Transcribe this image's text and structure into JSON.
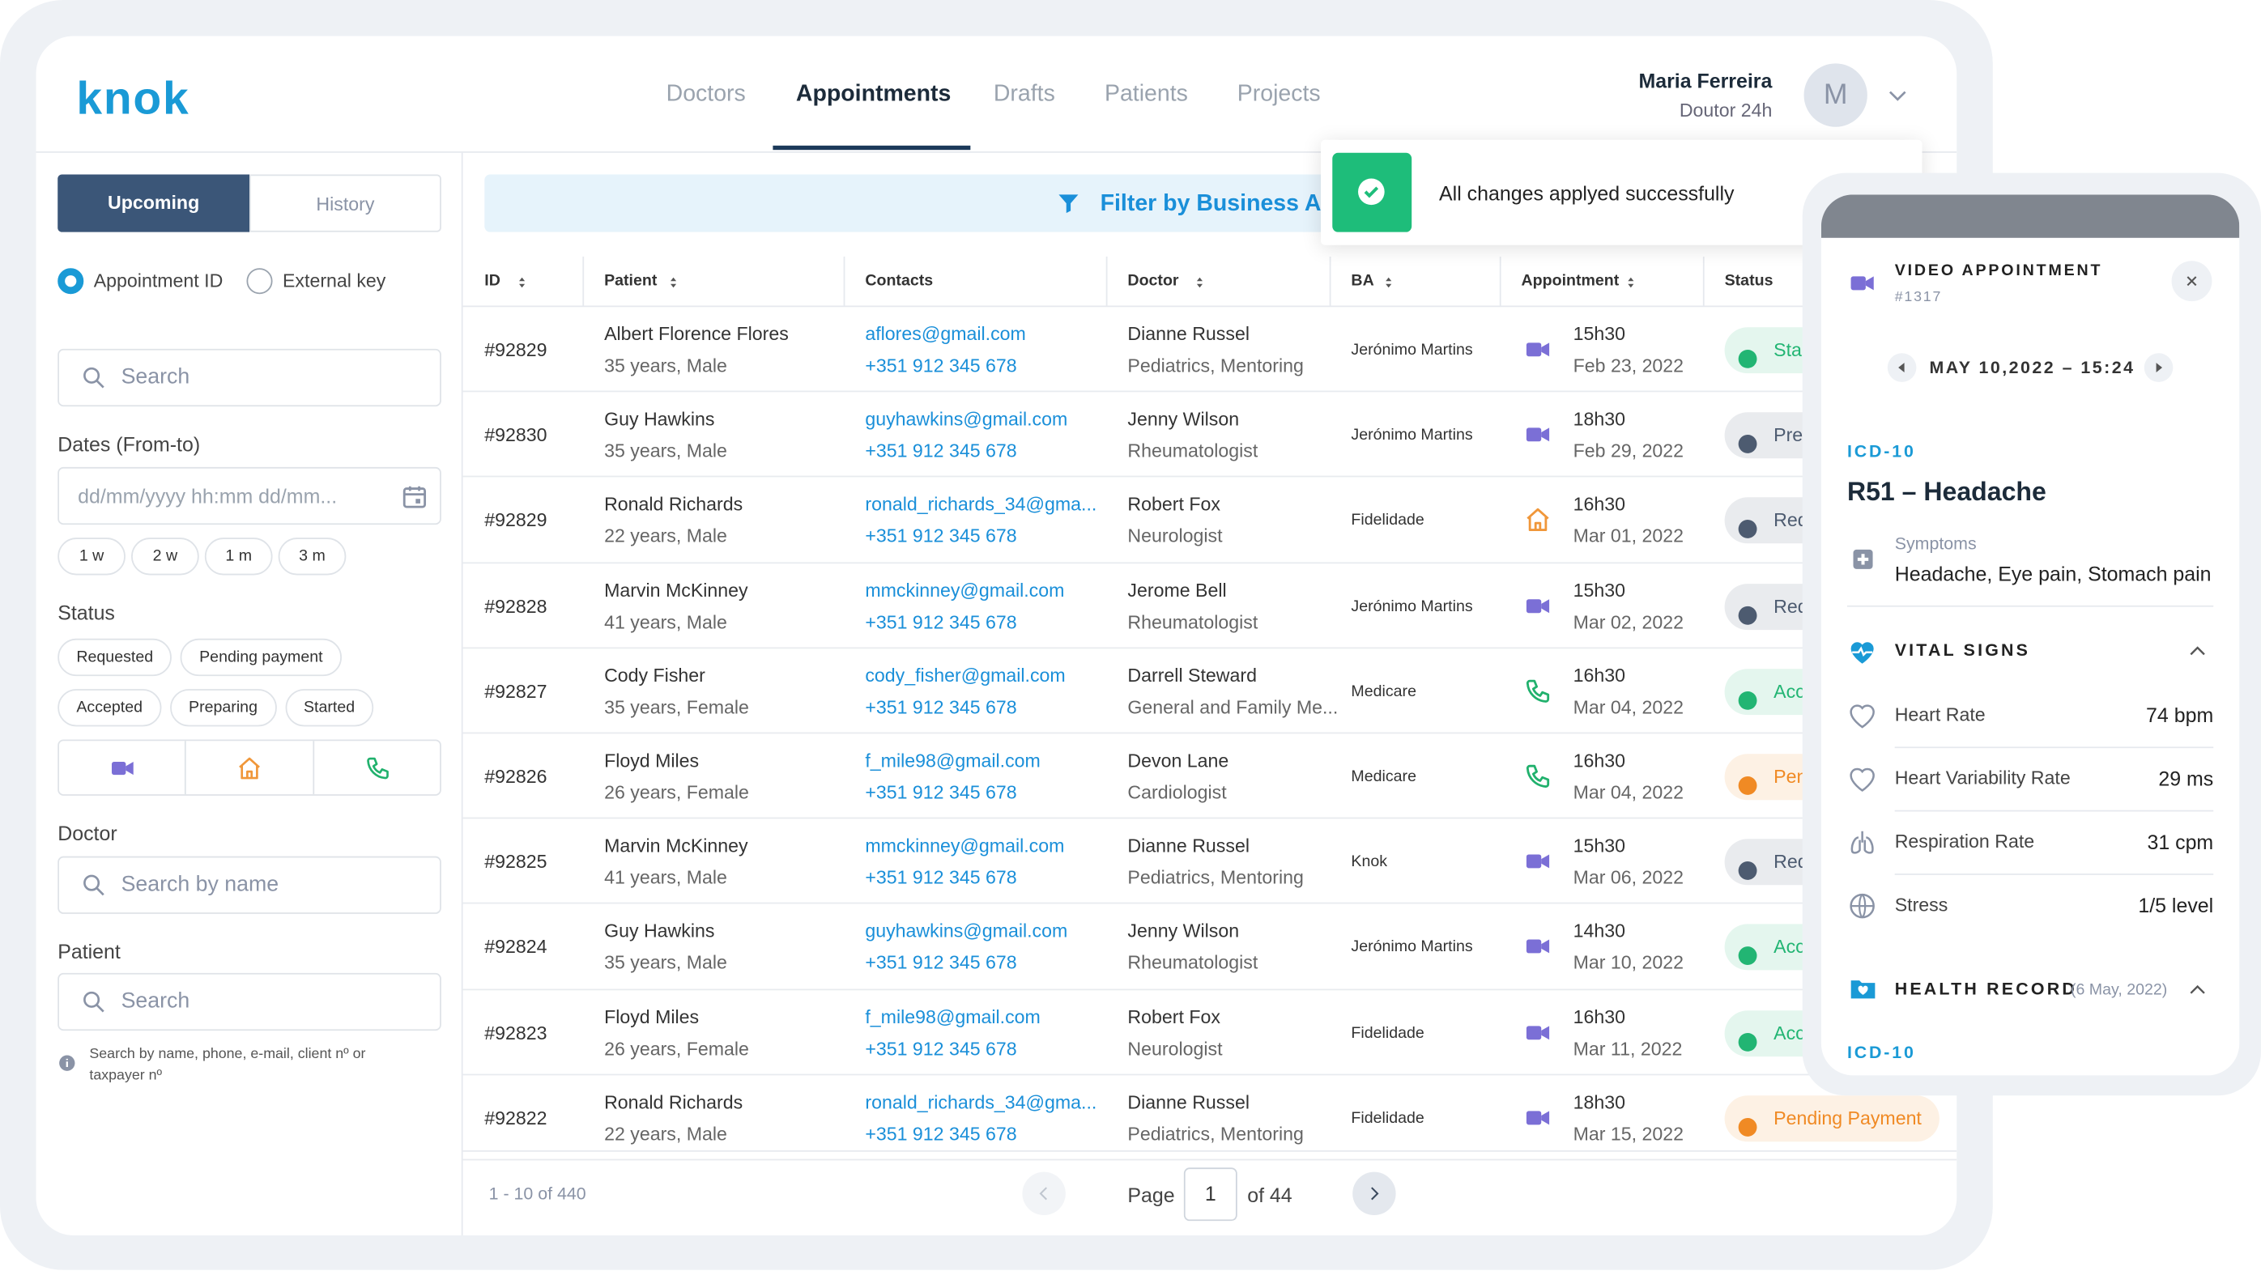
{
  "header": {
    "logo": "knok",
    "nav": [
      "Doctors",
      "Appointments",
      "Drafts",
      "Patients",
      "Projects"
    ],
    "active_nav": 1,
    "user_name": "Maria Ferreira",
    "user_role": "Doutor 24h",
    "avatar": "M"
  },
  "sidebar": {
    "tabs": [
      "Upcoming",
      "History"
    ],
    "search_modes": [
      "Appointment ID",
      "External key"
    ],
    "search_placeholder": "Search",
    "dates_label": "Dates (From-to)",
    "dates_placeholder": "dd/mm/yyyy hh:mm dd/mm...",
    "ranges": [
      "1 w",
      "2 w",
      "1 m",
      "3 m"
    ],
    "status_label": "Status",
    "statuses": [
      "Requested",
      "Pending payment",
      "Accepted",
      "Preparing",
      "Started"
    ],
    "doctor_label": "Doctor",
    "doctor_placeholder": "Search by name",
    "patient_label": "Patient",
    "patient_placeholder": "Search",
    "help": "Search by name, phone, e-mail, client nº or taxpayer nº"
  },
  "filter": "Filter by Business Account",
  "toast": "All changes applyed successfully",
  "table": {
    "columns": [
      "ID",
      "Patient",
      "Contacts",
      "Doctor",
      "BA",
      "Appointment",
      "Status"
    ],
    "rows": [
      {
        "id": "#92829",
        "patient": "Albert Florence Flores",
        "patient_info": "35 years, Male",
        "email": "aflores@gmail.com",
        "phone": "+351 912 345 678",
        "doctor": "Dianne Russel",
        "specialty": "Pediatrics, Mentoring",
        "ba": "Jerónimo Martins",
        "mode": "video",
        "time": "15h30",
        "date": "Feb 23, 2022",
        "status": "Started",
        "status_color": "#22b573"
      },
      {
        "id": "#92830",
        "patient": "Guy Hawkins",
        "patient_info": "35 years, Male",
        "email": "guyhawkins@gmail.com",
        "phone": "+351 912 345 678",
        "doctor": "Jenny Wilson",
        "specialty": "Rheumatologist",
        "ba": "Jerónimo Martins",
        "mode": "video",
        "time": "18h30",
        "date": "Feb 29, 2022",
        "status": "Preparing",
        "status_color": "#4d5b70"
      },
      {
        "id": "#92829",
        "patient": "Ronald Richards",
        "patient_info": "22 years, Male",
        "email": "ronald_richards_34@gma...",
        "phone": "+351 912 345 678",
        "doctor": "Robert Fox",
        "specialty": "Neurologist",
        "ba": "Fidelidade",
        "mode": "home",
        "time": "16h30",
        "date": "Mar 01, 2022",
        "status": "Requested",
        "status_color": "#4d5b70"
      },
      {
        "id": "#92828",
        "patient": "Marvin McKinney",
        "patient_info": "41 years, Male",
        "email": "mmckinney@gmail.com",
        "phone": "+351 912 345 678",
        "doctor": "Jerome Bell",
        "specialty": "Rheumatologist",
        "ba": "Jerónimo Martins",
        "mode": "video",
        "time": "15h30",
        "date": "Mar 02, 2022",
        "status": "Requested",
        "status_color": "#4d5b70"
      },
      {
        "id": "#92827",
        "patient": "Cody Fisher",
        "patient_info": "35 years, Female",
        "email": "cody_fisher@gmail.com",
        "phone": "+351 912 345 678",
        "doctor": "Darrell Steward",
        "specialty": "General and Family Me...",
        "ba": "Medicare",
        "mode": "phone",
        "time": "16h30",
        "date": "Mar 04, 2022",
        "status": "Accepted",
        "status_color": "#22b573"
      },
      {
        "id": "#92826",
        "patient": "Floyd Miles",
        "patient_info": "26 years, Female",
        "email": "f_mile98@gmail.com",
        "phone": "+351 912 345 678",
        "doctor": "Devon Lane",
        "specialty": "Cardiologist",
        "ba": "Medicare",
        "mode": "phone",
        "time": "16h30",
        "date": "Mar 04, 2022",
        "status": "Pending Payment",
        "status_color": "#f08a24"
      },
      {
        "id": "#92825",
        "patient": "Marvin McKinney",
        "patient_info": "41 years, Male",
        "email": "mmckinney@gmail.com",
        "phone": "+351 912 345 678",
        "doctor": "Dianne Russel",
        "specialty": "Pediatrics, Mentoring",
        "ba": "Knok",
        "mode": "video",
        "time": "15h30",
        "date": "Mar 06, 2022",
        "status": "Requested",
        "status_color": "#4d5b70"
      },
      {
        "id": "#92824",
        "patient": "Guy Hawkins",
        "patient_info": "35 years, Male",
        "email": "guyhawkins@gmail.com",
        "phone": "+351 912 345 678",
        "doctor": "Jenny Wilson",
        "specialty": "Rheumatologist",
        "ba": "Jerónimo Martins",
        "mode": "video",
        "time": "14h30",
        "date": "Mar 10, 2022",
        "status": "Accepted",
        "status_color": "#22b573"
      },
      {
        "id": "#92823",
        "patient": "Floyd Miles",
        "patient_info": "26 years, Female",
        "email": "f_mile98@gmail.com",
        "phone": "+351 912 345 678",
        "doctor": "Robert Fox",
        "specialty": "Neurologist",
        "ba": "Fidelidade",
        "mode": "video",
        "time": "16h30",
        "date": "Mar 11, 2022",
        "status": "Accepted",
        "status_color": "#22b573"
      },
      {
        "id": "#92822",
        "patient": "Ronald Richards",
        "patient_info": "22 years, Male",
        "email": "ronald_richards_34@gma...",
        "phone": "+351 912 345 678",
        "doctor": "Dianne Russel",
        "specialty": "Pediatrics, Mentoring",
        "ba": "Fidelidade",
        "mode": "video",
        "time": "18h30",
        "date": "Mar 15, 2022",
        "status": "Pending Payment",
        "status_color": "#f08a24"
      }
    ]
  },
  "pagination": {
    "summary": "1 - 10 of 440",
    "page_label": "Page",
    "page": 1,
    "total": "of 44"
  },
  "panel": {
    "title": "VIDEO APPOINTMENT",
    "ref": "#1317",
    "date": "MAY 10,2022 – 15:24",
    "code_label": "ICD-10",
    "diagnosis": "R51 – Headache",
    "symptoms_label": "Symptoms",
    "symptoms": "Headache, Eye pain, Stomach pain",
    "vitals_title": "VITAL SIGNS",
    "vitals": [
      {
        "name": "Heart Rate",
        "value": "74 bpm"
      },
      {
        "name": "Heart Variability Rate",
        "value": "29 ms"
      },
      {
        "name": "Respiration Rate",
        "value": "31 cpm"
      },
      {
        "name": "Stress",
        "value": "1/5 level"
      }
    ],
    "record_title": "HEALTH RECORD",
    "record_date": "(6 May, 2022)",
    "record_code": "ICD-10"
  }
}
